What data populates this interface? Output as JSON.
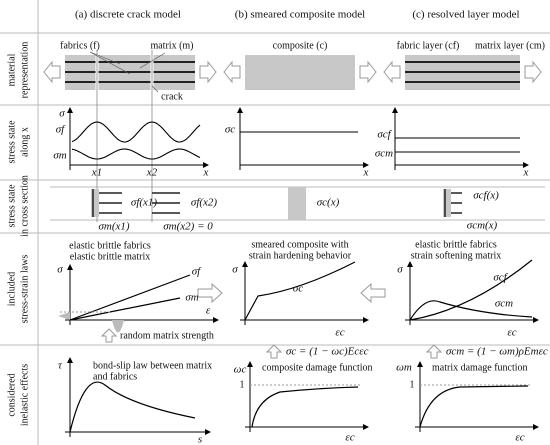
{
  "columns": [
    "(a) discrete crack model",
    "(b) smeared composite model",
    "(c) resolved layer model"
  ],
  "rows": [
    [
      "material",
      "representation"
    ],
    [
      "stress state",
      "along x"
    ],
    [
      "stress state",
      "in cross section"
    ],
    [
      "included",
      "stress-strain laws"
    ],
    [
      "considered",
      "inelastic effects"
    ]
  ],
  "material": {
    "fabrics": "fabrics (f)",
    "matrix": "matrix (m)",
    "crack": "crack",
    "composite": "composite (c)",
    "fabric_layer": "fabric layer (cf)",
    "matrix_layer": "matrix layer (cm)"
  },
  "stress_along_x": {
    "a": {
      "sigma": "σ",
      "sigma_f": "σf",
      "sigma_m": "σm",
      "x1": "x1",
      "x2": "x2",
      "x": "x"
    },
    "b": {
      "sigma_c": "σc",
      "x": "x"
    },
    "c": {
      "sigma_cf": "σcf",
      "sigma_cm": "σcm",
      "x": "x"
    }
  },
  "cross_section": {
    "a": [
      "σf(x1)",
      "σf(x2)",
      "σm(x1)",
      "σm(x2) = 0"
    ],
    "b": [
      "σc(x)"
    ],
    "c": [
      "σcf(x)",
      "σcm(x)"
    ]
  },
  "stress_strain": {
    "a": {
      "title": [
        "elastic brittle fabrics",
        "elastic brittle matrix"
      ],
      "sigma": "σ",
      "sigma_f": "σf",
      "sigma_m": "σm",
      "epsilon": "ε",
      "note": "random matrix strength"
    },
    "b": {
      "title": [
        "smeared composite with",
        "strain hardening behavior"
      ],
      "sigma": "σ",
      "sigma_c": "σc",
      "epsilon": "εc"
    },
    "c": {
      "title": [
        "elastic brittle fabrics",
        "strain softening matrix"
      ],
      "sigma": "σ",
      "sigma_cf": "σcf",
      "sigma_cm": "σcm",
      "epsilon": "εc"
    }
  },
  "inelastic": {
    "a": {
      "tau": "τ",
      "title": [
        "bond-slip law between matrix",
        "and fabrics"
      ],
      "s": "s"
    },
    "b": {
      "formula": "σc = (1 − ωc)Ecεc",
      "omega": "ωc",
      "one": "1",
      "title": "composite damage function",
      "epsilon": "εc"
    },
    "c": {
      "formula": "σcm = (1 − ωm)ρEmεc",
      "omega": "ωm",
      "one": "1",
      "title": "matrix damage function",
      "epsilon": "εc"
    }
  }
}
